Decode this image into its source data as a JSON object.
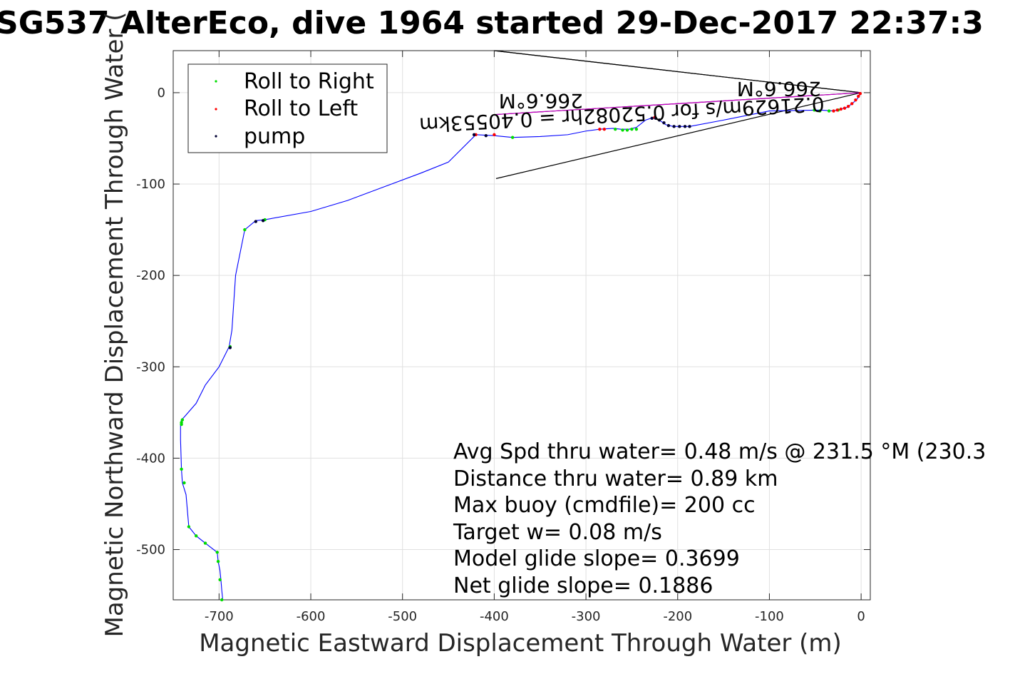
{
  "chart_data": {
    "type": "line",
    "title": "SG537 AlterEco, dive 1964 started 29-Dec-2017 22:37:3",
    "xlabel": "Magnetic Eastward Displacement Through Water (m)",
    "ylabel": "Magnetic Northward Displacement Through Water (",
    "xlim": [
      -750,
      10
    ],
    "ylim": [
      -555,
      46
    ],
    "xticks": [
      -700,
      -600,
      -500,
      -400,
      -300,
      -200,
      -100,
      0
    ],
    "yticks": [
      0,
      -100,
      -200,
      -300,
      -400,
      -500
    ],
    "xtick_labels": [
      "-700",
      "-600",
      "-500",
      "-400",
      "-300",
      "-200",
      "-100",
      "0"
    ],
    "ytick_labels": [
      "0",
      "-100",
      "-200",
      "-300",
      "-400",
      "-500"
    ],
    "grid": true,
    "legend_position": "top-left",
    "legend": [
      {
        "name": "Roll to Right",
        "color": "#00dd00"
      },
      {
        "name": "Roll to Left",
        "color": "#ff0000"
      },
      {
        "name": "pump",
        "color": "#000033"
      }
    ],
    "track": {
      "color": "#0000ff",
      "x": [
        0,
        -5,
        -15,
        -30,
        -45,
        -100,
        -150,
        -187,
        -195,
        -205,
        -213,
        -220,
        -226,
        -235,
        -245,
        -253,
        -262,
        -270,
        -285,
        -300,
        -320,
        -350,
        -380,
        -400,
        -420,
        -450,
        -480,
        -520,
        -560,
        -600,
        -650,
        -660,
        -672,
        -682,
        -686,
        -689,
        -700,
        -715,
        -725,
        -738,
        -741,
        -742,
        -742,
        -741,
        -740,
        -736,
        -733,
        -725,
        -715,
        -702,
        -701,
        -699,
        -698,
        -697,
        -696
      ],
      "y": [
        0,
        -8,
        -16,
        -20,
        -19,
        -20,
        -30,
        -37,
        -37,
        -37,
        -35,
        -30,
        -27,
        -30,
        -38,
        -40,
        -40,
        -39,
        -40,
        -42,
        -46,
        -48,
        -49,
        -47,
        -46,
        -76,
        -88,
        -103,
        -118,
        -130,
        -139,
        -140,
        -150,
        -200,
        -260,
        -278,
        -300,
        -320,
        -340,
        -355,
        -358,
        -362,
        -380,
        -412,
        -427,
        -440,
        -475,
        -485,
        -493,
        -503,
        -513,
        -523,
        -533,
        -545,
        -555
      ]
    },
    "roll_right_points": {
      "x": [
        -25,
        -35,
        -45,
        -51,
        -245,
        -250,
        -255,
        -260,
        -268,
        -380,
        -650,
        -672,
        -688,
        -740,
        -741,
        -741,
        -741,
        -738,
        -733,
        -725,
        -715,
        -702,
        -701,
        -699,
        -697
      ],
      "y": [
        -19,
        -20,
        -20,
        -19,
        -40,
        -40,
        -41,
        -41,
        -40,
        -49,
        -139,
        -150,
        -278,
        -358,
        -361,
        -363,
        -412,
        -427,
        -475,
        -485,
        -493,
        -503,
        -513,
        -533,
        -555
      ]
    },
    "roll_left_points": {
      "x": [
        -1,
        -3,
        -6,
        -10,
        -14,
        -18,
        -22,
        -26,
        -30,
        -280,
        -285,
        -225,
        -400,
        -420
      ],
      "y": [
        -1,
        -4,
        -8,
        -12,
        -15,
        -17,
        -18,
        -19,
        -20,
        -40,
        -40,
        -27,
        -46,
        -46
      ]
    },
    "pump_points": {
      "x": [
        -187,
        -192,
        -198,
        -204,
        -210,
        -215,
        -220,
        -224,
        -228,
        -660,
        -652,
        -688,
        -409,
        -422
      ],
      "y": [
        -37,
        -37,
        -37,
        -37,
        -36,
        -33,
        -30,
        -28,
        -28,
        -141,
        -140,
        -279,
        -47,
        -46
      ]
    },
    "reference_lines": {
      "color": "#000000",
      "from": [
        0,
        0
      ],
      "to_x": [
        -400,
        -400,
        -398,
        -400
      ],
      "to_y": [
        46,
        -24,
        -94,
        46
      ]
    },
    "magenta_line": {
      "color": "#cc00cc",
      "x": [
        0,
        -400
      ],
      "y": [
        0,
        -24
      ]
    },
    "rotated_labels": [
      "266.6°M",
      "266.6°M",
      "0.21629m/s for 0.52082hr = 0.40553km"
    ],
    "annotations": [
      "Avg Spd thru water=  0.48 m/s @ 231.5 °M (230.3",
      "Distance thru water=  0.89 km",
      "Max buoy (cmdfile)= 200 cc",
      "Target w= 0.08 m/s",
      "Model glide slope= 0.3699",
      "Net glide slope= 0.1886"
    ]
  }
}
